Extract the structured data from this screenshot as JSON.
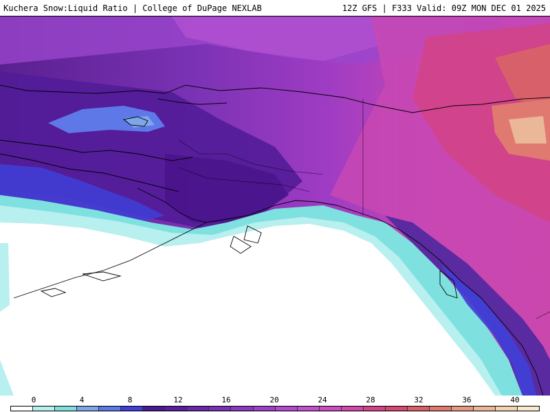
{
  "header": {
    "left_title": "Kuchera Snow:Liquid Ratio | College of DuPage NEXLAB",
    "right_title": "12Z GFS | F333 Valid: 09Z MON DEC 01 2025"
  },
  "colorbar": {
    "ticks": [
      "0",
      "4",
      "8",
      "12",
      "16",
      "20",
      "24",
      "28",
      "32",
      "36",
      "40"
    ],
    "colors": [
      "#ffffff",
      "#b8efef",
      "#7fe0e0",
      "#7ea6e8",
      "#5f78e8",
      "#4040d8",
      "#4a1a90",
      "#581e9c",
      "#6828a8",
      "#7a32b4",
      "#8a3ac0",
      "#a040c8",
      "#b24ad0",
      "#c050d0",
      "#cc4cc4",
      "#d048a8",
      "#d24488",
      "#d44a70",
      "#d8606a",
      "#e07a70",
      "#e49a80",
      "#eab898",
      "#f2d4b4",
      "#f8ead0"
    ]
  },
  "map": {
    "region": "Alaska / Gulf of Alaska"
  }
}
